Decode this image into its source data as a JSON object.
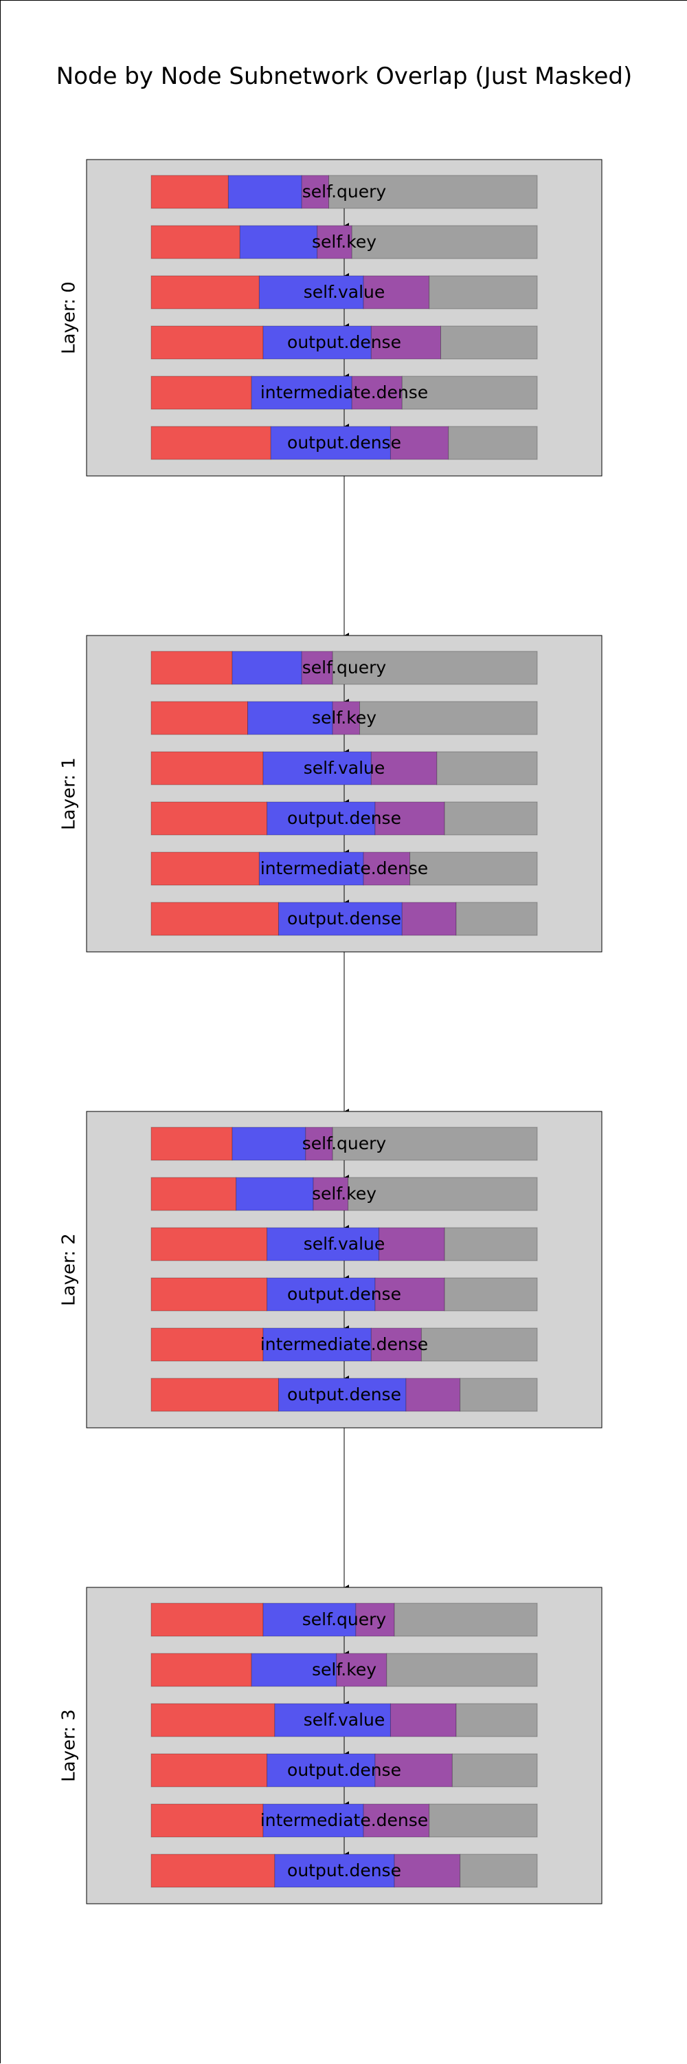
{
  "title": "Node by Node Subnetwork Overlap (Just Masked)",
  "colors": {
    "only_a": "#ef5350",
    "only_b": "#5555ef",
    "overlap": "#9c4fa8",
    "neither": "#a0a0a0",
    "panel": "#d3d3d3"
  },
  "chart_data": {
    "type": "diagram",
    "segments": [
      "only_a",
      "only_b",
      "overlap",
      "neither"
    ],
    "layers": [
      {
        "label": "Layer: 0",
        "modules": [
          {
            "name": "self.query",
            "fractions": [
              0.2,
              0.19,
              0.07,
              0.54
            ]
          },
          {
            "name": "self.key",
            "fractions": [
              0.23,
              0.2,
              0.09,
              0.48
            ]
          },
          {
            "name": "self.value",
            "fractions": [
              0.28,
              0.27,
              0.17,
              0.28
            ]
          },
          {
            "name": "output.dense",
            "fractions": [
              0.29,
              0.28,
              0.18,
              0.25
            ]
          },
          {
            "name": "intermediate.dense",
            "fractions": [
              0.26,
              0.26,
              0.13,
              0.35
            ]
          },
          {
            "name": "output.dense",
            "fractions": [
              0.31,
              0.31,
              0.15,
              0.23
            ]
          }
        ]
      },
      {
        "label": "Layer: 1",
        "modules": [
          {
            "name": "self.query",
            "fractions": [
              0.21,
              0.18,
              0.08,
              0.53
            ]
          },
          {
            "name": "self.key",
            "fractions": [
              0.25,
              0.22,
              0.07,
              0.46
            ]
          },
          {
            "name": "self.value",
            "fractions": [
              0.29,
              0.28,
              0.17,
              0.26
            ]
          },
          {
            "name": "output.dense",
            "fractions": [
              0.3,
              0.28,
              0.18,
              0.24
            ]
          },
          {
            "name": "intermediate.dense",
            "fractions": [
              0.28,
              0.27,
              0.12,
              0.33
            ]
          },
          {
            "name": "output.dense",
            "fractions": [
              0.33,
              0.32,
              0.14,
              0.21
            ]
          }
        ]
      },
      {
        "label": "Layer: 2",
        "modules": [
          {
            "name": "self.query",
            "fractions": [
              0.21,
              0.19,
              0.07,
              0.53
            ]
          },
          {
            "name": "self.key",
            "fractions": [
              0.22,
              0.2,
              0.09,
              0.49
            ]
          },
          {
            "name": "self.value",
            "fractions": [
              0.3,
              0.29,
              0.17,
              0.24
            ]
          },
          {
            "name": "output.dense",
            "fractions": [
              0.3,
              0.28,
              0.18,
              0.24
            ]
          },
          {
            "name": "intermediate.dense",
            "fractions": [
              0.29,
              0.28,
              0.13,
              0.3
            ]
          },
          {
            "name": "output.dense",
            "fractions": [
              0.33,
              0.33,
              0.14,
              0.2
            ]
          }
        ]
      },
      {
        "label": "Layer: 3",
        "modules": [
          {
            "name": "self.query",
            "fractions": [
              0.29,
              0.24,
              0.1,
              0.37
            ]
          },
          {
            "name": "self.key",
            "fractions": [
              0.26,
              0.22,
              0.13,
              0.39
            ]
          },
          {
            "name": "self.value",
            "fractions": [
              0.32,
              0.3,
              0.17,
              0.21
            ]
          },
          {
            "name": "output.dense",
            "fractions": [
              0.3,
              0.28,
              0.2,
              0.22
            ]
          },
          {
            "name": "intermediate.dense",
            "fractions": [
              0.29,
              0.26,
              0.17,
              0.28
            ]
          },
          {
            "name": "output.dense",
            "fractions": [
              0.32,
              0.31,
              0.17,
              0.2
            ]
          }
        ]
      }
    ]
  }
}
